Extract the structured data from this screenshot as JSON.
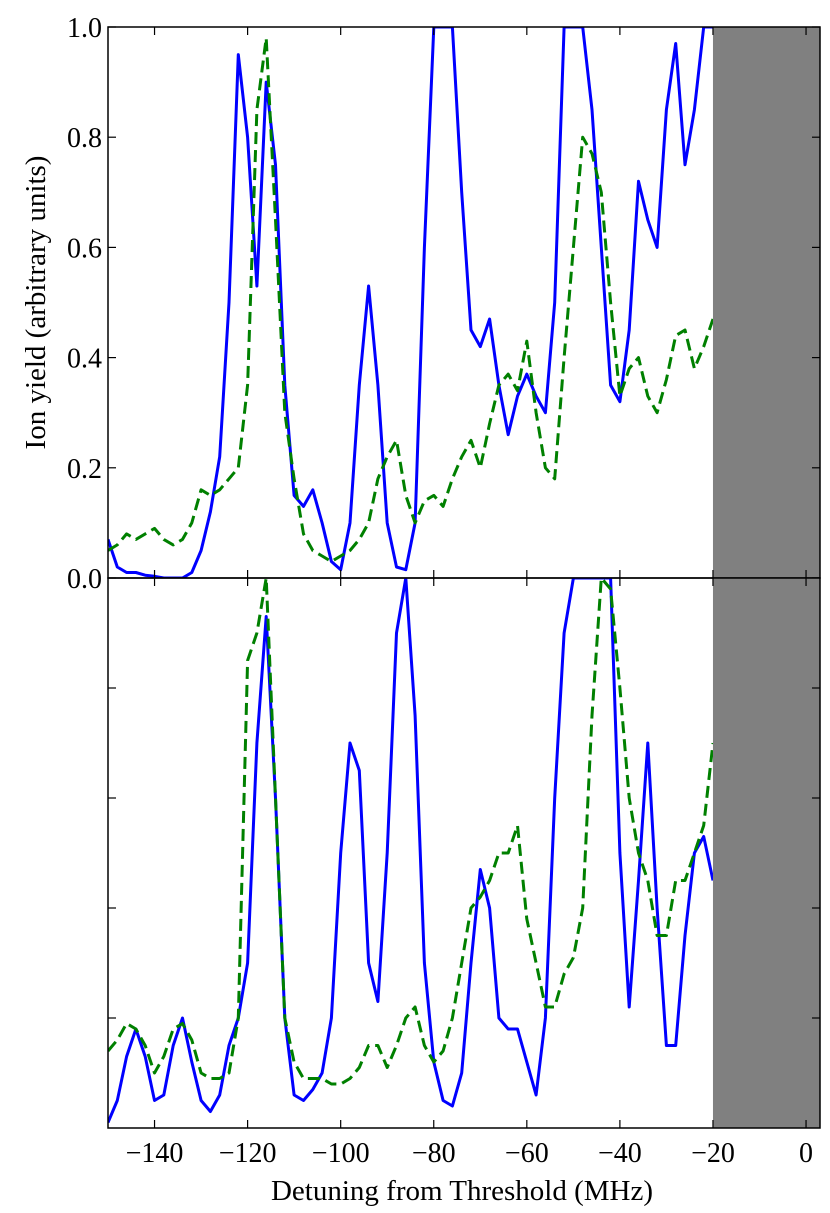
{
  "chart_data": [
    {
      "type": "line",
      "ylabel": "Ion yield (arbitrary units)",
      "x": [
        -150,
        -148,
        -146,
        -144,
        -142,
        -140,
        -138,
        -136,
        -134,
        -132,
        -130,
        -128,
        -126,
        -124,
        -122,
        -120,
        -118,
        -116,
        -114,
        -112,
        -110,
        -108,
        -106,
        -104,
        -102,
        -100,
        -98,
        -96,
        -94,
        -92,
        -90,
        -88,
        -86,
        -84,
        -82,
        -80,
        -78,
        -76,
        -74,
        -72,
        -70,
        -68,
        -66,
        -64,
        -62,
        -60,
        -58,
        -56,
        -54,
        -52,
        -50,
        -48,
        -46,
        -44,
        -42,
        -40,
        -38,
        -36,
        -34,
        -32,
        -30,
        -28,
        -26,
        -24,
        -22,
        -20
      ],
      "series": [
        {
          "color": "#0000ff",
          "dashed": false,
          "values": [
            0.07,
            0.02,
            0.01,
            0.01,
            0.005,
            0.003,
            0,
            0,
            0,
            0.01,
            0.05,
            0.12,
            0.22,
            0.5,
            0.95,
            0.8,
            0.53,
            0.9,
            0.75,
            0.35,
            0.15,
            0.13,
            0.16,
            0.1,
            0.03,
            0.015,
            0.1,
            0.35,
            0.53,
            0.35,
            0.1,
            0.02,
            0.015,
            0.1,
            0.6,
            1.0,
            1.0,
            1.0,
            0.7,
            0.45,
            0.42,
            0.47,
            0.35,
            0.26,
            0.33,
            0.37,
            0.33,
            0.3,
            0.5,
            1.0,
            1.0,
            1.0,
            0.85,
            0.6,
            0.35,
            0.32,
            0.45,
            0.72,
            0.65,
            0.6,
            0.85,
            0.97,
            0.75,
            0.85,
            1.0,
            1.0
          ]
        },
        {
          "color": "#008000",
          "dashed": true,
          "values": [
            0.05,
            0.06,
            0.08,
            0.07,
            0.08,
            0.09,
            0.07,
            0.06,
            0.07,
            0.1,
            0.16,
            0.15,
            0.16,
            0.18,
            0.2,
            0.35,
            0.85,
            0.98,
            0.65,
            0.3,
            0.18,
            0.08,
            0.05,
            0.04,
            0.03,
            0.04,
            0.05,
            0.07,
            0.1,
            0.18,
            0.22,
            0.25,
            0.15,
            0.1,
            0.14,
            0.15,
            0.13,
            0.18,
            0.22,
            0.25,
            0.2,
            0.28,
            0.35,
            0.37,
            0.34,
            0.43,
            0.3,
            0.2,
            0.18,
            0.4,
            0.6,
            0.8,
            0.77,
            0.7,
            0.5,
            0.33,
            0.38,
            0.4,
            0.33,
            0.3,
            0.36,
            0.44,
            0.45,
            0.38,
            0.42,
            0.47
          ]
        }
      ],
      "xlim": [
        -150,
        3
      ],
      "ylim": [
        0,
        1
      ],
      "xticks": [
        -140,
        -120,
        -100,
        -80,
        -60,
        -40,
        -20,
        0
      ],
      "show_xtick_labels": false,
      "yticks": [
        {
          "value": 0,
          "label": "0.0"
        },
        0.2,
        0.4,
        0.6,
        0.8,
        {
          "value": 1,
          "label": "1.0"
        }
      ],
      "show_ytick_labels": true,
      "shade": {
        "x": -20,
        "color": "#808080"
      }
    },
    {
      "type": "line",
      "xlabel": "Detuning from Threshold (MHz)",
      "x": [
        -150,
        -148,
        -146,
        -144,
        -142,
        -140,
        -138,
        -136,
        -134,
        -132,
        -130,
        -128,
        -126,
        -124,
        -122,
        -120,
        -118,
        -116,
        -114,
        -112,
        -110,
        -108,
        -106,
        -104,
        -102,
        -100,
        -98,
        -96,
        -94,
        -92,
        -90,
        -88,
        -86,
        -84,
        -82,
        -80,
        -78,
        -76,
        -74,
        -72,
        -70,
        -68,
        -66,
        -64,
        -62,
        -60,
        -58,
        -56,
        -54,
        -52,
        -50,
        -48,
        -46,
        -44,
        -42,
        -40,
        -38,
        -36,
        -34,
        -32,
        -30,
        -28,
        -26,
        -24,
        -22,
        -20
      ],
      "series": [
        {
          "color": "#0000ff",
          "dashed": false,
          "values": [
            0.01,
            0.05,
            0.13,
            0.18,
            0.13,
            0.05,
            0.06,
            0.15,
            0.2,
            0.12,
            0.05,
            0.03,
            0.06,
            0.15,
            0.2,
            0.3,
            0.7,
            0.93,
            0.6,
            0.2,
            0.06,
            0.05,
            0.07,
            0.1,
            0.2,
            0.5,
            0.7,
            0.65,
            0.3,
            0.23,
            0.5,
            0.9,
            1.0,
            0.75,
            0.3,
            0.12,
            0.05,
            0.04,
            0.1,
            0.3,
            0.47,
            0.4,
            0.2,
            0.18,
            0.18,
            0.12,
            0.06,
            0.2,
            0.6,
            0.9,
            1.0,
            1.0,
            1.0,
            1.0,
            1.0,
            0.5,
            0.22,
            0.45,
            0.7,
            0.4,
            0.15,
            0.15,
            0.35,
            0.5,
            0.53,
            0.45
          ]
        },
        {
          "color": "#008000",
          "dashed": true,
          "values": [
            0.14,
            0.16,
            0.19,
            0.18,
            0.15,
            0.1,
            0.13,
            0.18,
            0.19,
            0.16,
            0.1,
            0.09,
            0.09,
            0.1,
            0.2,
            0.85,
            0.9,
            1.0,
            0.6,
            0.2,
            0.12,
            0.09,
            0.09,
            0.09,
            0.08,
            0.08,
            0.09,
            0.11,
            0.15,
            0.15,
            0.11,
            0.15,
            0.2,
            0.22,
            0.15,
            0.12,
            0.14,
            0.2,
            0.3,
            0.4,
            0.42,
            0.45,
            0.5,
            0.5,
            0.55,
            0.38,
            0.3,
            0.22,
            0.22,
            0.28,
            0.31,
            0.4,
            0.75,
            1.0,
            0.98,
            0.8,
            0.6,
            0.5,
            0.45,
            0.35,
            0.35,
            0.45,
            0.45,
            0.5,
            0.55,
            0.7
          ]
        }
      ],
      "xlim": [
        -150,
        3
      ],
      "ylim": [
        0,
        1
      ],
      "xticks": [
        {
          "value": -140,
          "label": "−140"
        },
        {
          "value": -120,
          "label": "−120"
        },
        {
          "value": -100,
          "label": "−100"
        },
        {
          "value": -80,
          "label": "−80"
        },
        {
          "value": -60,
          "label": "−60"
        },
        {
          "value": -40,
          "label": "−40"
        },
        {
          "value": -20,
          "label": "−20"
        },
        0
      ],
      "show_xtick_labels": true,
      "yticks": [
        0.2,
        0.4,
        0.6,
        0.8
      ],
      "show_ytick_labels": false,
      "shade": {
        "x": -20,
        "color": "#808080"
      }
    }
  ]
}
